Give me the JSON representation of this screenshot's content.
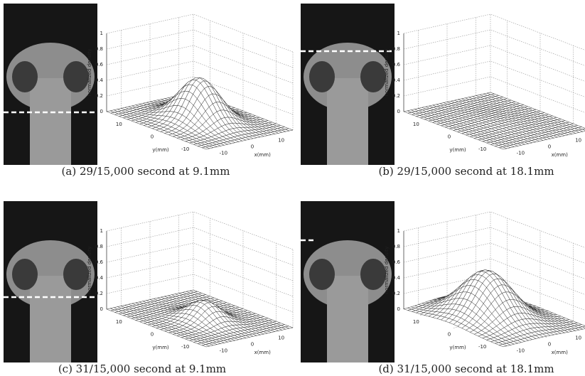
{
  "panels": [
    {
      "caption": "(a) 29/15,000 second at 9.1mm",
      "plot": {
        "zlabel": "normalized density",
        "xlabel": "x(mm)",
        "ylabel": "y(mm)",
        "zticks": [
          0,
          0.2,
          0.4,
          0.6,
          0.8,
          1
        ],
        "zlim": [
          0,
          1
        ],
        "xticks": [
          -10,
          0,
          10
        ],
        "xlim": [
          -15,
          15
        ],
        "yticks": [
          10,
          0,
          -10
        ],
        "ylim": [
          15,
          -15
        ],
        "peak": 0.55
      }
    },
    {
      "caption": "(b) 29/15,000 second at 18.1mm",
      "plot": {
        "zlabel": "normalized density",
        "xlabel": "x(mm)",
        "ylabel": "y(mm)",
        "zticks": [
          0,
          0.2,
          0.4,
          0.6,
          0.8,
          1
        ],
        "zlim": [
          0,
          1
        ],
        "xticks": [
          -10,
          0,
          10
        ],
        "xlim": [
          -15,
          15
        ],
        "yticks": [
          10,
          0,
          -10
        ],
        "ylim": [
          15,
          -15
        ],
        "peak": 0.02
      }
    },
    {
      "caption": "(c) 31/15,000 second at 9.1mm",
      "plot": {
        "zlabel": "normalized density",
        "xlabel": "x(mm)",
        "ylabel": "y(mm)",
        "zticks": [
          0,
          0.2,
          0.4,
          0.6,
          0.8,
          1
        ],
        "zlim": [
          0,
          1
        ],
        "xticks": [
          -10,
          0,
          10
        ],
        "xlim": [
          -15,
          15
        ],
        "yticks": [
          10,
          0,
          -10
        ],
        "ylim": [
          15,
          -15
        ],
        "peak": 0.25
      }
    },
    {
      "caption": "(d) 31/15,000 second at 18.1mm",
      "plot": {
        "zlabel": "normalized density",
        "xlabel": "x(mm)",
        "ylabel": "y(mm)",
        "zticks": [
          0,
          0.2,
          0.4,
          0.6,
          0.8,
          1
        ],
        "zlim": [
          0,
          1
        ],
        "xticks": [
          -10,
          0,
          10
        ],
        "xlim": [
          -15,
          15
        ],
        "yticks": [
          10,
          0,
          -10
        ],
        "ylim": [
          15,
          -15
        ],
        "peak": 0.6
      }
    }
  ]
}
